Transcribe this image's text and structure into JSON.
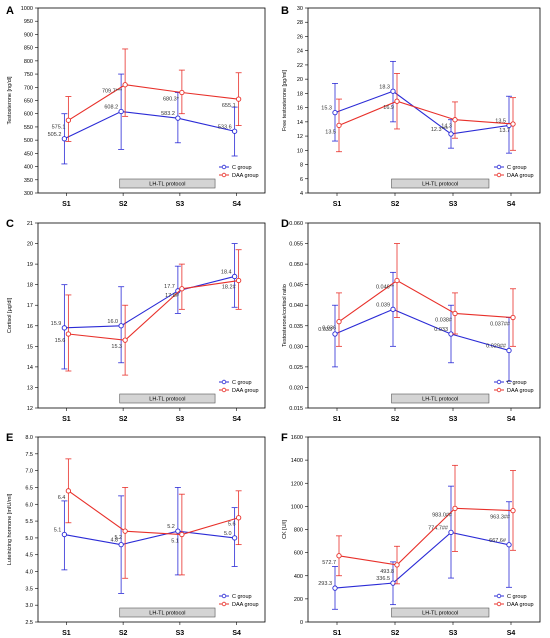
{
  "chart_data": [
    {
      "panel": "A",
      "type": "line",
      "ylabel": "Testosterone [ng/dl]",
      "ylim": [
        300,
        1000
      ],
      "yticks": [
        300,
        350,
        400,
        450,
        500,
        550,
        600,
        650,
        700,
        750,
        800,
        850,
        900,
        950,
        1000
      ],
      "categories": [
        "S1",
        "S2",
        "S3",
        "S4"
      ],
      "protocol_label": "LH-TL protocol",
      "legend_position": "bottom-right",
      "series": [
        {
          "name": "C group",
          "color": "#2b2bd6",
          "values": [
            505.2,
            608.2,
            583.2,
            533.6
          ],
          "labels": [
            "505.2",
            "608.2",
            "583.2",
            "533.6"
          ],
          "err_lo": [
            410,
            465,
            490,
            440
          ],
          "err_hi": [
            600,
            750,
            680,
            625
          ]
        },
        {
          "name": "DAA group",
          "color": "#e8302a",
          "values": [
            575.1,
            709.7,
            680.3,
            655.1
          ],
          "labels": [
            "575.1",
            "709.7***",
            "680.3*",
            "655.1"
          ],
          "err_lo": [
            495,
            590,
            600,
            555
          ],
          "err_hi": [
            665,
            845,
            765,
            755
          ]
        }
      ]
    },
    {
      "panel": "B",
      "type": "line",
      "ylabel": "Free testosterone [pg/ml]",
      "ylim": [
        4,
        30
      ],
      "yticks": [
        4,
        6,
        8,
        10,
        12,
        14,
        16,
        18,
        20,
        22,
        24,
        26,
        28,
        30
      ],
      "categories": [
        "S1",
        "S2",
        "S3",
        "S4"
      ],
      "protocol_label": "LH-TL protocol",
      "legend_position": "bottom-right",
      "series": [
        {
          "name": "C group",
          "color": "#2b2bd6",
          "values": [
            15.3,
            18.3,
            12.3,
            13.5
          ],
          "labels": [
            "15.3",
            "18.3",
            "12.3***",
            "13.5"
          ],
          "err_lo": [
            11.3,
            14.0,
            10.3,
            9.6
          ],
          "err_hi": [
            19.4,
            22.5,
            14.3,
            17.6
          ]
        },
        {
          "name": "DAA group",
          "color": "#e8302a",
          "values": [
            13.5,
            16.9,
            14.3,
            13.7
          ],
          "labels": [
            "13.5",
            "16.9",
            "14.3",
            "13.7"
          ],
          "err_lo": [
            9.8,
            13.0,
            11.7,
            10.0
          ],
          "err_hi": [
            17.2,
            20.8,
            16.8,
            17.4
          ]
        }
      ]
    },
    {
      "panel": "C",
      "type": "line",
      "ylabel": "Cortisol [μg/dl]",
      "ylim": [
        12,
        21
      ],
      "yticks": [
        12,
        13,
        14,
        15,
        16,
        17,
        18,
        19,
        20,
        21
      ],
      "categories": [
        "S1",
        "S2",
        "S3",
        "S4"
      ],
      "protocol_label": "LH-TL protocol",
      "legend_position": "bottom-right",
      "series": [
        {
          "name": "C group",
          "color": "#2b2bd6",
          "values": [
            15.9,
            16.0,
            17.7,
            18.4
          ],
          "labels": [
            "15.9",
            "16.0",
            "17.7",
            "18.4"
          ],
          "err_lo": [
            13.9,
            14.2,
            16.6,
            16.9
          ],
          "err_hi": [
            18.0,
            17.9,
            18.9,
            20.0
          ]
        },
        {
          "name": "DAA group",
          "color": "#e8302a",
          "values": [
            15.6,
            15.3,
            17.8,
            18.2
          ],
          "labels": [
            "15.6",
            "15.3",
            "17.8#",
            "18.2#"
          ],
          "err_lo": [
            13.8,
            13.6,
            16.8,
            16.8
          ],
          "err_hi": [
            17.5,
            17.0,
            19.0,
            19.7
          ]
        }
      ]
    },
    {
      "panel": "D",
      "type": "line",
      "ylabel": "Testosterone/cortisol ratio",
      "ylim": [
        0.015,
        0.06
      ],
      "yticks": [
        0.015,
        0.02,
        0.025,
        0.03,
        0.035,
        0.04,
        0.045,
        0.05,
        0.055,
        0.06
      ],
      "tick_labels": [
        "0.015",
        "0.020",
        "0.025",
        "0.030",
        "0.035",
        "0.040",
        "0.045",
        "0.050",
        "0.055",
        "0.060"
      ],
      "categories": [
        "S1",
        "S2",
        "S3",
        "S4"
      ],
      "protocol_label": "LH-TL protocol",
      "legend_position": "bottom-right",
      "series": [
        {
          "name": "C group",
          "color": "#2b2bd6",
          "values": [
            0.033,
            0.039,
            0.033,
            0.029
          ],
          "labels": [
            "0.033",
            "0.039",
            "0.033",
            "0.029##"
          ],
          "err_lo": [
            0.025,
            0.03,
            0.026,
            0.0215
          ],
          "err_hi": [
            0.04,
            0.048,
            0.04,
            0.037
          ]
        },
        {
          "name": "DAA group",
          "color": "#e8302a",
          "values": [
            0.036,
            0.046,
            0.038,
            0.037
          ],
          "labels": [
            "0.036",
            "0.046**",
            "0.038#",
            "0.037##"
          ],
          "err_lo": [
            0.03,
            0.037,
            0.033,
            0.03
          ],
          "err_hi": [
            0.043,
            0.055,
            0.043,
            0.044
          ]
        }
      ]
    },
    {
      "panel": "E",
      "type": "line",
      "ylabel": "Luteinizing hormone [mIU/ml]",
      "ylim": [
        2.5,
        8.0
      ],
      "yticks": [
        2.5,
        3.0,
        3.5,
        4.0,
        4.5,
        5.0,
        5.5,
        6.0,
        6.5,
        7.0,
        7.5,
        8.0
      ],
      "tick_labels": [
        "2.5",
        "3.0",
        "3.5",
        "4.0",
        "4.5",
        "5.0",
        "5.5",
        "6.0",
        "6.5",
        "7.0",
        "7.5",
        "8.0"
      ],
      "categories": [
        "S1",
        "S2",
        "S3",
        "S4"
      ],
      "protocol_label": "LH-TL protocol",
      "legend_position": "bottom-right",
      "series": [
        {
          "name": "C group",
          "color": "#2b2bd6",
          "values": [
            5.1,
            4.8,
            5.2,
            5.0
          ],
          "labels": [
            "5.1",
            "4.8",
            "5.2",
            "5.0"
          ],
          "err_lo": [
            4.05,
            3.35,
            3.9,
            4.15
          ],
          "err_hi": [
            6.1,
            6.25,
            6.5,
            5.9
          ]
        },
        {
          "name": "DAA group",
          "color": "#e8302a",
          "values": [
            6.4,
            5.2,
            5.1,
            5.6
          ],
          "labels": [
            "6.4",
            "5.2",
            "5.1",
            "5.6"
          ],
          "err_lo": [
            5.45,
            3.8,
            3.9,
            4.8
          ],
          "err_hi": [
            7.35,
            6.5,
            6.3,
            6.4
          ]
        }
      ]
    },
    {
      "panel": "F",
      "type": "line",
      "ylabel": "CK [U/l]",
      "ylim": [
        0,
        1600
      ],
      "yticks": [
        0,
        200,
        400,
        600,
        800,
        1000,
        1200,
        1400,
        1600
      ],
      "categories": [
        "S1",
        "S2",
        "S3",
        "S4"
      ],
      "protocol_label": "LH-TL protocol",
      "legend_position": "bottom-right",
      "series": [
        {
          "name": "C group",
          "color": "#2b2bd6",
          "values": [
            293.3,
            336.5,
            774.7,
            667.6
          ],
          "labels": [
            "293.3",
            "336.5",
            "774.7##",
            "667.6#"
          ],
          "err_lo": [
            110,
            150,
            380,
            300
          ],
          "err_hi": [
            480,
            520,
            1175,
            1040
          ]
        },
        {
          "name": "DAA group",
          "color": "#e8302a",
          "values": [
            572.7,
            493.8,
            983.0,
            963.3
          ],
          "labels": [
            "572.7",
            "493.8",
            "983.0##",
            "963.3##"
          ],
          "err_lo": [
            400,
            330,
            610,
            620
          ],
          "err_hi": [
            745,
            655,
            1355,
            1310
          ]
        }
      ]
    }
  ]
}
